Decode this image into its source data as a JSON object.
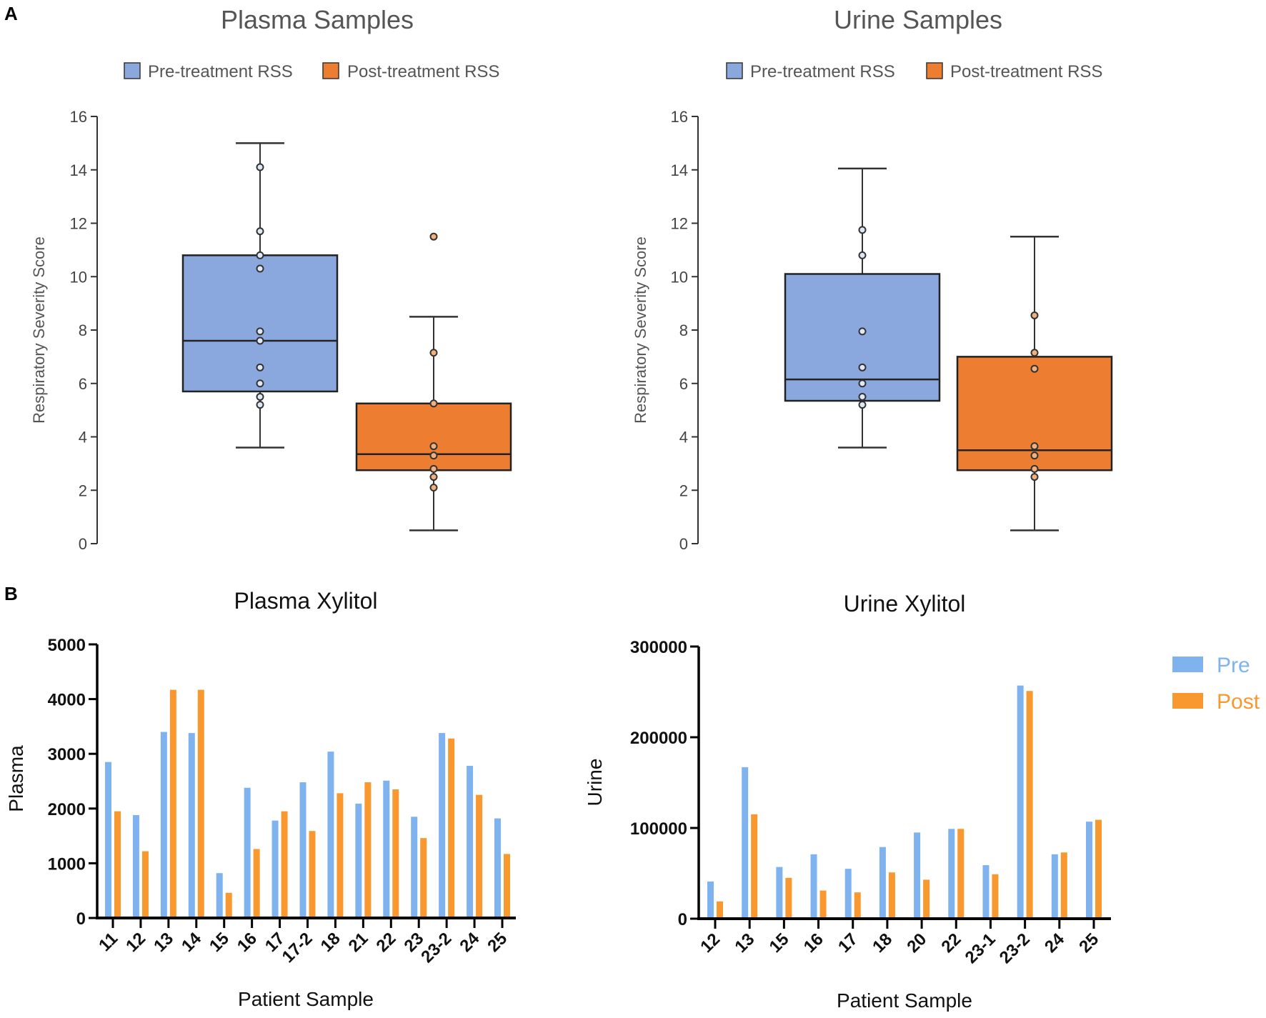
{
  "panel_labels": [
    "A",
    "B"
  ],
  "chart_data": [
    {
      "type": "box",
      "title": "Plasma Samples",
      "ylabel": "Respiratory Severity Score",
      "ylim": [
        0,
        16
      ],
      "yticks": [
        0,
        2,
        4,
        6,
        8,
        10,
        12,
        14,
        16
      ],
      "legend": [
        "Pre-treatment RSS",
        "Post-treatment RSS"
      ],
      "legend_placement": "top-center",
      "groups": [
        {
          "name": "Pre-treatment RSS",
          "color": "#8ba8de",
          "whisker_low": 3.6,
          "q1": 5.7,
          "median": 7.6,
          "q3": 10.8,
          "whisker_high": 15.0,
          "points": [
            14.1,
            11.7,
            10.8,
            10.3,
            7.95,
            7.6,
            6.6,
            6.0,
            5.5,
            5.2
          ]
        },
        {
          "name": "Post-treatment RSS",
          "color": "#ed7d31",
          "whisker_low": 0.5,
          "q1": 2.75,
          "median": 3.35,
          "q3": 5.25,
          "whisker_high": 8.5,
          "points": [
            11.5,
            7.15,
            5.25,
            3.65,
            3.3,
            2.8,
            2.5,
            2.1
          ]
        }
      ]
    },
    {
      "type": "box",
      "title": "Urine Samples",
      "ylabel": "Respiratory Severity Score",
      "ylim": [
        0,
        16
      ],
      "yticks": [
        0,
        2,
        4,
        6,
        8,
        10,
        12,
        14,
        16
      ],
      "legend": [
        "Pre-treatment RSS",
        "Post-treatment RSS"
      ],
      "legend_placement": "top-center",
      "groups": [
        {
          "name": "Pre-treatment RSS",
          "color": "#8ba8de",
          "whisker_low": 3.6,
          "q1": 5.35,
          "median": 6.15,
          "q3": 10.1,
          "whisker_high": 14.05,
          "points": [
            11.75,
            10.8,
            7.95,
            6.6,
            6.0,
            5.5,
            5.2
          ]
        },
        {
          "name": "Post-treatment RSS",
          "color": "#ed7d31",
          "whisker_low": 0.5,
          "q1": 2.75,
          "median": 3.5,
          "q3": 7.0,
          "whisker_high": 11.5,
          "points": [
            8.55,
            7.15,
            6.55,
            3.65,
            3.3,
            2.8,
            2.5
          ]
        }
      ]
    },
    {
      "type": "bar",
      "title": "Plasma Xylitol",
      "xlabel": "Patient Sample",
      "ylabel": "Plasma",
      "ylim": [
        0,
        5000
      ],
      "yticks": [
        0,
        1000,
        2000,
        3000,
        4000,
        5000
      ],
      "categories": [
        "11",
        "12",
        "13",
        "14",
        "15",
        "16",
        "17",
        "17-2",
        "18",
        "21",
        "22",
        "23",
        "23-2",
        "24",
        "25"
      ],
      "series": [
        {
          "name": "Pre",
          "color": "#7fb3f0",
          "values": [
            2850,
            1880,
            3400,
            3380,
            820,
            2380,
            1780,
            2480,
            3040,
            2090,
            2510,
            1850,
            3380,
            2780,
            1820
          ]
        },
        {
          "name": "Post",
          "color": "#f8982f",
          "values": [
            1950,
            1220,
            4170,
            4170,
            460,
            1260,
            1950,
            1590,
            2280,
            2480,
            2350,
            1460,
            3280,
            2250,
            1170
          ]
        }
      ]
    },
    {
      "type": "bar",
      "title": "Urine Xylitol",
      "xlabel": "Patient Sample",
      "ylabel": "Urine",
      "ylim": [
        0,
        300000
      ],
      "yticks": [
        0,
        100000,
        200000,
        300000
      ],
      "categories": [
        "12",
        "13",
        "15",
        "16",
        "17",
        "18",
        "20",
        "22",
        "23-1",
        "23-2",
        "24",
        "25"
      ],
      "legend": [
        "Pre",
        "Post"
      ],
      "legend_placement": "right",
      "series": [
        {
          "name": "Pre",
          "color": "#7fb3f0",
          "values": [
            41000,
            167000,
            57000,
            71000,
            55000,
            79000,
            95000,
            99000,
            59000,
            257000,
            71000,
            107000
          ]
        },
        {
          "name": "Post",
          "color": "#f8982f",
          "values": [
            19000,
            115000,
            45000,
            31000,
            29000,
            51000,
            43000,
            99000,
            49000,
            251000,
            73000,
            109000
          ]
        }
      ]
    }
  ]
}
